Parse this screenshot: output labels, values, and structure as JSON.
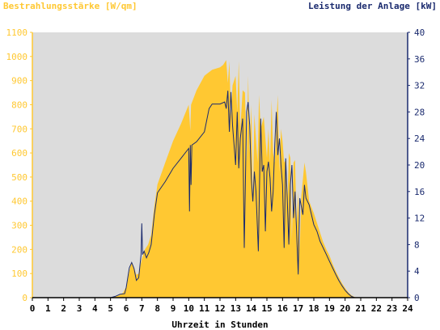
{
  "chart_data": {
    "type": "area",
    "title_left": "Bestrahlungsstärke [W/qm]",
    "title_right": "Leistung der Anlage [kW]",
    "xlabel": "Uhrzeit in Stunden",
    "x_ticks": [
      "0",
      "1",
      "2",
      "3",
      "4",
      "5",
      "6",
      "7",
      "8",
      "9",
      "10",
      "11",
      "12",
      "13",
      "14",
      "15",
      "16",
      "17",
      "18",
      "19",
      "20",
      "21",
      "22",
      "23",
      "24"
    ],
    "xlim": [
      0,
      24
    ],
    "y_left_ticks": [
      "0",
      "100",
      "200",
      "300",
      "400",
      "500",
      "600",
      "700",
      "800",
      "900",
      "1000",
      "1100"
    ],
    "ylim_left": [
      0,
      1100
    ],
    "y_right_ticks": [
      "0",
      "4",
      "8",
      "12",
      "16",
      "20",
      "24",
      "28",
      "32",
      "36",
      "40"
    ],
    "ylim_right": [
      0,
      40
    ],
    "grid": false,
    "colors": {
      "irradiance_fill": "#ffc832",
      "power_line": "#1a2a6e",
      "plot_bg": "#dcdcdc",
      "left_axis": "#ffc832",
      "right_axis": "#1a2a6e"
    },
    "series": [
      {
        "axis": "left",
        "kind": "area",
        "points": [
          [
            0,
            0
          ],
          [
            5.0,
            0
          ],
          [
            5.2,
            3
          ],
          [
            5.5,
            8
          ],
          [
            5.8,
            20
          ],
          [
            6.0,
            45
          ],
          [
            6.2,
            110
          ],
          [
            6.35,
            150
          ],
          [
            6.5,
            125
          ],
          [
            6.65,
            95
          ],
          [
            6.8,
            100
          ],
          [
            7.0,
            160
          ],
          [
            7.2,
            200
          ],
          [
            7.4,
            220
          ],
          [
            7.6,
            260
          ],
          [
            7.8,
            380
          ],
          [
            8.0,
            470
          ],
          [
            8.5,
            560
          ],
          [
            9.0,
            650
          ],
          [
            9.5,
            720
          ],
          [
            10.0,
            800
          ],
          [
            10.1,
            690
          ],
          [
            10.15,
            800
          ],
          [
            10.5,
            860
          ],
          [
            11.0,
            920
          ],
          [
            11.5,
            945
          ],
          [
            12.0,
            955
          ],
          [
            12.2,
            965
          ],
          [
            12.4,
            985
          ],
          [
            12.5,
            890
          ],
          [
            12.6,
            980
          ],
          [
            12.7,
            750
          ],
          [
            12.8,
            880
          ],
          [
            13.0,
            920
          ],
          [
            13.1,
            770
          ],
          [
            13.2,
            980
          ],
          [
            13.3,
            700
          ],
          [
            13.45,
            860
          ],
          [
            13.6,
            850
          ],
          [
            13.7,
            560
          ],
          [
            13.8,
            920
          ],
          [
            13.9,
            600
          ],
          [
            14.0,
            800
          ],
          [
            14.1,
            400
          ],
          [
            14.2,
            760
          ],
          [
            14.4,
            560
          ],
          [
            14.5,
            840
          ],
          [
            14.6,
            700
          ],
          [
            14.8,
            750
          ],
          [
            15.0,
            580
          ],
          [
            15.1,
            700
          ],
          [
            15.2,
            560
          ],
          [
            15.3,
            820
          ],
          [
            15.4,
            600
          ],
          [
            15.5,
            560
          ],
          [
            15.6,
            720
          ],
          [
            15.7,
            840
          ],
          [
            15.8,
            520
          ],
          [
            15.9,
            700
          ],
          [
            16.0,
            650
          ],
          [
            16.1,
            560
          ],
          [
            16.2,
            570
          ],
          [
            16.3,
            370
          ],
          [
            16.4,
            600
          ],
          [
            16.5,
            580
          ],
          [
            16.6,
            240
          ],
          [
            16.7,
            560
          ],
          [
            16.8,
            570
          ],
          [
            16.9,
            300
          ],
          [
            17.0,
            440
          ],
          [
            17.1,
            200
          ],
          [
            17.2,
            420
          ],
          [
            17.4,
            560
          ],
          [
            17.5,
            520
          ],
          [
            17.7,
            400
          ],
          [
            18.0,
            350
          ],
          [
            18.2,
            310
          ],
          [
            18.4,
            270
          ],
          [
            18.6,
            230
          ],
          [
            18.8,
            200
          ],
          [
            19.0,
            175
          ],
          [
            19.2,
            140
          ],
          [
            19.4,
            110
          ],
          [
            19.6,
            85
          ],
          [
            19.8,
            60
          ],
          [
            20.0,
            40
          ],
          [
            20.2,
            22
          ],
          [
            20.4,
            10
          ],
          [
            20.6,
            3
          ],
          [
            20.8,
            0
          ],
          [
            24,
            0
          ]
        ]
      },
      {
        "axis": "right",
        "kind": "line",
        "points": [
          [
            0,
            0
          ],
          [
            5.0,
            0
          ],
          [
            5.3,
            0.2
          ],
          [
            5.6,
            0.5
          ],
          [
            5.9,
            0.6
          ],
          [
            6.0,
            1.5
          ],
          [
            6.2,
            4.5
          ],
          [
            6.35,
            5.3
          ],
          [
            6.5,
            4.4
          ],
          [
            6.65,
            2.6
          ],
          [
            6.8,
            3.0
          ],
          [
            6.95,
            6.5
          ],
          [
            7.0,
            11.2
          ],
          [
            7.05,
            6.5
          ],
          [
            7.15,
            7.0
          ],
          [
            7.3,
            6.0
          ],
          [
            7.45,
            6.8
          ],
          [
            7.6,
            8.0
          ],
          [
            7.8,
            12.5
          ],
          [
            8.0,
            15.8
          ],
          [
            8.5,
            17.5
          ],
          [
            9.0,
            19.5
          ],
          [
            9.5,
            21.0
          ],
          [
            10.0,
            22.5
          ],
          [
            10.05,
            13.0
          ],
          [
            10.1,
            23.0
          ],
          [
            10.15,
            17.0
          ],
          [
            10.2,
            23.0
          ],
          [
            10.5,
            23.5
          ],
          [
            11.0,
            25.0
          ],
          [
            11.3,
            28.5
          ],
          [
            11.5,
            29.2
          ],
          [
            12.0,
            29.2
          ],
          [
            12.3,
            29.5
          ],
          [
            12.4,
            28.5
          ],
          [
            12.5,
            31.2
          ],
          [
            12.6,
            25.0
          ],
          [
            12.7,
            31.0
          ],
          [
            12.8,
            26.0
          ],
          [
            13.0,
            20.0
          ],
          [
            13.1,
            28.0
          ],
          [
            13.2,
            19.5
          ],
          [
            13.3,
            24.0
          ],
          [
            13.45,
            27.0
          ],
          [
            13.55,
            7.5
          ],
          [
            13.7,
            28.0
          ],
          [
            13.8,
            29.5
          ],
          [
            13.9,
            26.0
          ],
          [
            14.0,
            18.0
          ],
          [
            14.1,
            14.5
          ],
          [
            14.2,
            19.0
          ],
          [
            14.3,
            16.0
          ],
          [
            14.45,
            7.0
          ],
          [
            14.6,
            27.0
          ],
          [
            14.7,
            19.0
          ],
          [
            14.8,
            20.0
          ],
          [
            14.9,
            10.0
          ],
          [
            15.0,
            19.0
          ],
          [
            15.1,
            20.5
          ],
          [
            15.2,
            18.0
          ],
          [
            15.3,
            13.0
          ],
          [
            15.4,
            16.0
          ],
          [
            15.5,
            23.0
          ],
          [
            15.6,
            28.0
          ],
          [
            15.7,
            21.5
          ],
          [
            15.8,
            24.0
          ],
          [
            15.9,
            20.0
          ],
          [
            16.0,
            17.0
          ],
          [
            16.1,
            7.5
          ],
          [
            16.2,
            21.0
          ],
          [
            16.3,
            15.0
          ],
          [
            16.4,
            8.0
          ],
          [
            16.5,
            17.0
          ],
          [
            16.6,
            20.0
          ],
          [
            16.7,
            12.0
          ],
          [
            16.8,
            16.0
          ],
          [
            16.9,
            10.0
          ],
          [
            17.0,
            3.5
          ],
          [
            17.1,
            15.0
          ],
          [
            17.3,
            12.5
          ],
          [
            17.4,
            17.0
          ],
          [
            17.5,
            15.0
          ],
          [
            17.7,
            14.0
          ],
          [
            18.0,
            11.0
          ],
          [
            18.2,
            10.0
          ],
          [
            18.4,
            8.5
          ],
          [
            18.6,
            7.5
          ],
          [
            18.8,
            6.5
          ],
          [
            19.0,
            5.5
          ],
          [
            19.2,
            4.5
          ],
          [
            19.4,
            3.5
          ],
          [
            19.6,
            2.6
          ],
          [
            19.8,
            1.8
          ],
          [
            20.0,
            1.1
          ],
          [
            20.2,
            0.6
          ],
          [
            20.4,
            0.2
          ],
          [
            20.6,
            0
          ],
          [
            24,
            0
          ]
        ]
      }
    ]
  }
}
